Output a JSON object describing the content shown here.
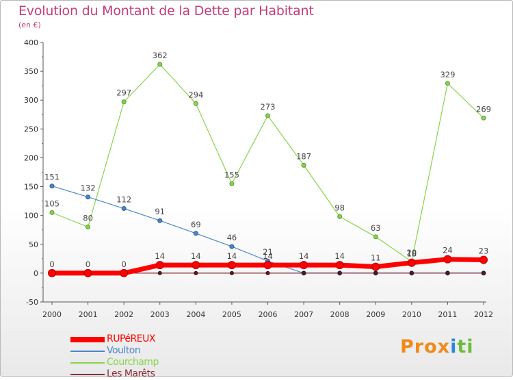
{
  "chart_data": {
    "type": "line",
    "title": "Evolution du Montant de la Dette par Habitant",
    "subtitle": "(en €)",
    "xlabel": "",
    "ylabel": "",
    "x": [
      "2000",
      "2001",
      "2002",
      "2003",
      "2004",
      "2005",
      "2006",
      "2007",
      "2008",
      "2009",
      "2010",
      "2011",
      "2012"
    ],
    "ylim": [
      -50,
      400
    ],
    "yticks": [
      -50,
      0,
      50,
      100,
      150,
      200,
      250,
      300,
      350,
      400
    ],
    "grid": false,
    "legend_position": "bottom-left",
    "series": [
      {
        "name": "RUPéREUX",
        "color": "#ff0000",
        "values": [
          0,
          0,
          0,
          14,
          14,
          14,
          14,
          14,
          14,
          11,
          18,
          24,
          23
        ]
      },
      {
        "name": "Voulton",
        "color": "#4a86c8",
        "values": [
          151,
          132,
          112,
          91,
          69,
          46,
          21,
          0,
          0,
          0,
          0,
          0,
          0
        ]
      },
      {
        "name": "Courchamp",
        "color": "#88d44c",
        "values": [
          105,
          80,
          297,
          362,
          294,
          155,
          273,
          187,
          98,
          63,
          20,
          329,
          269
        ]
      },
      {
        "name": "Les Marêts",
        "color": "#8b2e3a",
        "values": [
          0,
          0,
          0,
          0,
          0,
          0,
          0,
          0,
          0,
          0,
          0,
          0,
          0
        ]
      }
    ]
  },
  "logo": {
    "text": "Prox",
    "mark": "i",
    "text2": "ti"
  }
}
